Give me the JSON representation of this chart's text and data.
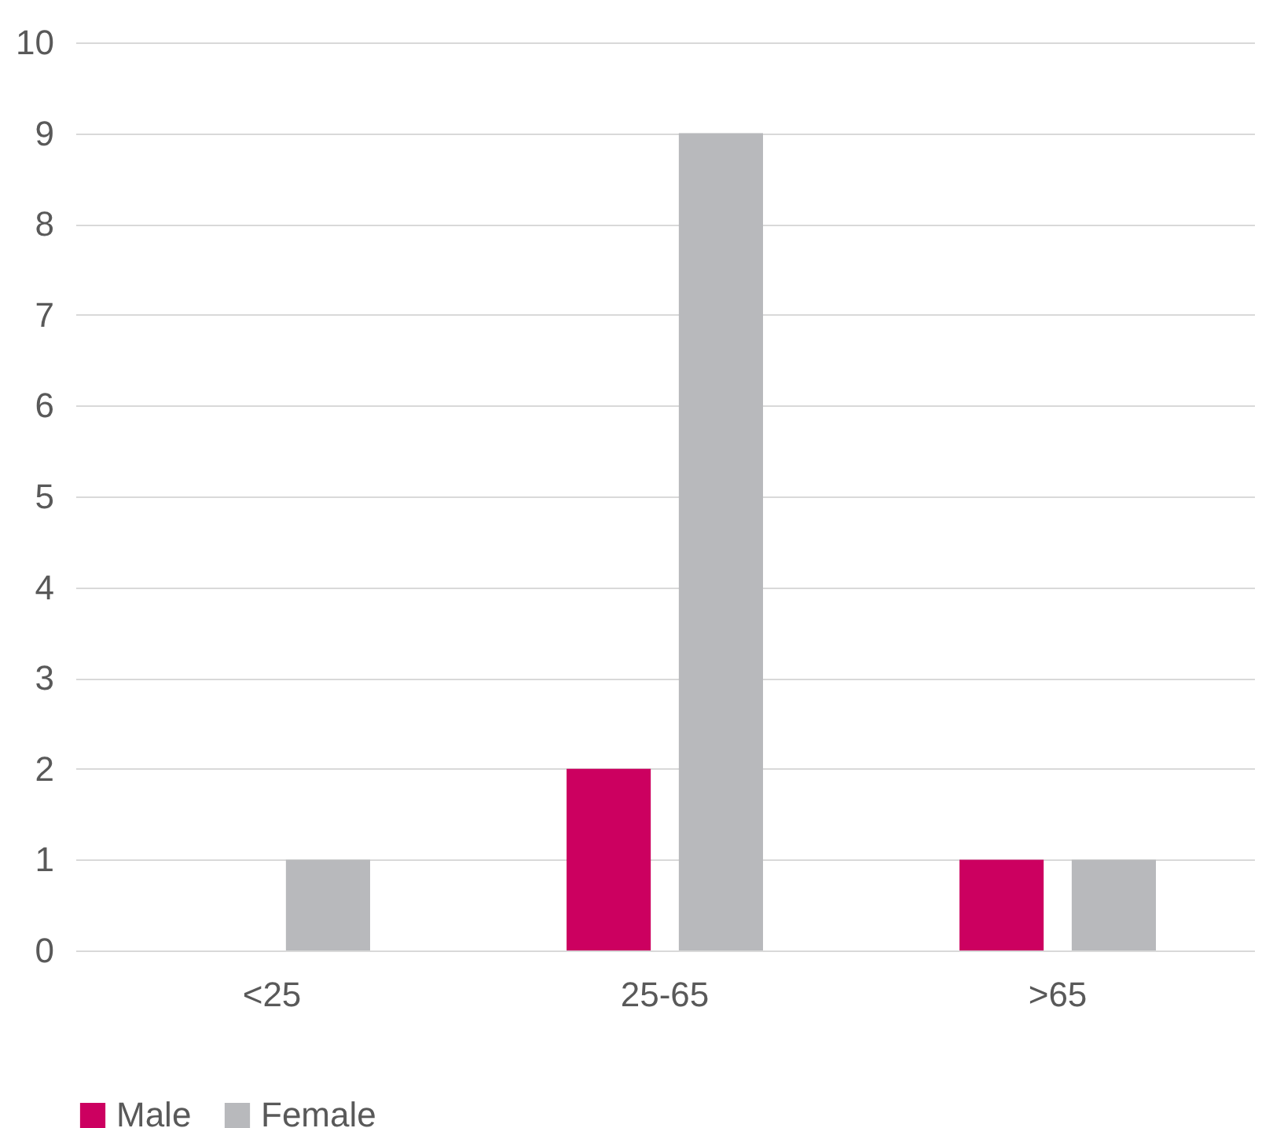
{
  "chart_data": {
    "type": "bar",
    "categories": [
      "<25",
      "25-65",
      ">65"
    ],
    "series": [
      {
        "name": "Male",
        "color": "#cc0060",
        "values": [
          0,
          2,
          1
        ]
      },
      {
        "name": "Female",
        "color": "#b8b9bc",
        "values": [
          1,
          9,
          1
        ]
      }
    ],
    "ylim": [
      0,
      10
    ],
    "yticks": [
      0,
      1,
      2,
      3,
      4,
      5,
      6,
      7,
      8,
      9,
      10
    ],
    "grid": "y",
    "legend": "bottom"
  }
}
